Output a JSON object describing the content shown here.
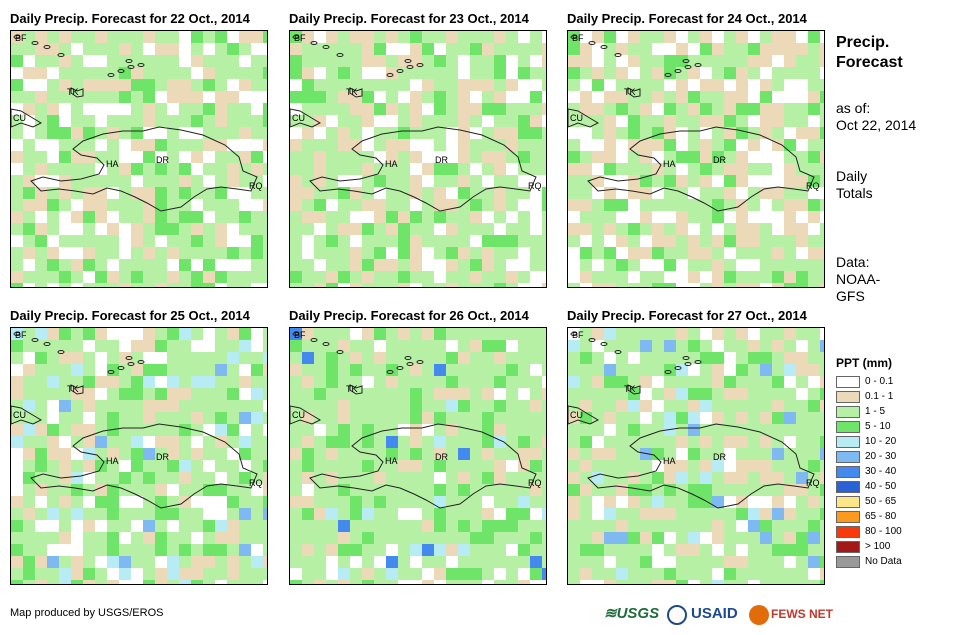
{
  "panels": [
    {
      "title": "Daily Precip. Forecast for 22 Oct., 2014",
      "seed": 3
    },
    {
      "title": "Daily Precip. Forecast for 23 Oct., 2014",
      "seed": 11
    },
    {
      "title": "Daily Precip. Forecast for 24 Oct., 2014",
      "seed": 17
    },
    {
      "title": "Daily Precip. Forecast for 25 Oct., 2014",
      "seed": 29
    },
    {
      "title": "Daily Precip. Forecast for 26 Oct., 2014",
      "seed": 41
    },
    {
      "title": "Daily Precip. Forecast for 27 Oct., 2014",
      "seed": 53
    }
  ],
  "places": {
    "bf": "BF",
    "cu": "CU",
    "tk": "TK",
    "ha": "HA",
    "dr": "DR",
    "rq": "RQ"
  },
  "sidebar": {
    "title_line1": "Precip.",
    "title_line2": "Forecast",
    "asof_line1": "as of:",
    "asof_line2": "Oct 22, 2014",
    "daily_line1": "Daily",
    "daily_line2": "Totals",
    "data_line1": "Data:",
    "data_line2": "NOAA-",
    "data_line3": "GFS"
  },
  "legend": {
    "title": "PPT (mm)",
    "items": [
      {
        "label": "0 - 0.1",
        "color": "#ffffff"
      },
      {
        "label": "0.1 - 1",
        "color": "#ecd9b8"
      },
      {
        "label": "1 - 5",
        "color": "#b5f0a5"
      },
      {
        "label": "5 - 10",
        "color": "#6ee468"
      },
      {
        "label": "10 - 20",
        "color": "#b8ecf4"
      },
      {
        "label": "20 - 30",
        "color": "#7eb9f2"
      },
      {
        "label": "30 - 40",
        "color": "#4489ee"
      },
      {
        "label": "40 - 50",
        "color": "#2a62d6"
      },
      {
        "label": "50 - 65",
        "color": "#fde68a"
      },
      {
        "label": "65 - 80",
        "color": "#fb9a1c"
      },
      {
        "label": "80 - 100",
        "color": "#f83a0a"
      },
      {
        "label": "> 100",
        "color": "#a31818"
      },
      {
        "label": "No Data",
        "color": "#999999"
      }
    ]
  },
  "credit": "Map produced by USGS/EROS",
  "logos": {
    "usgs": "USGS",
    "usaid": "USAID",
    "fewsnet": "FEWS NET"
  }
}
